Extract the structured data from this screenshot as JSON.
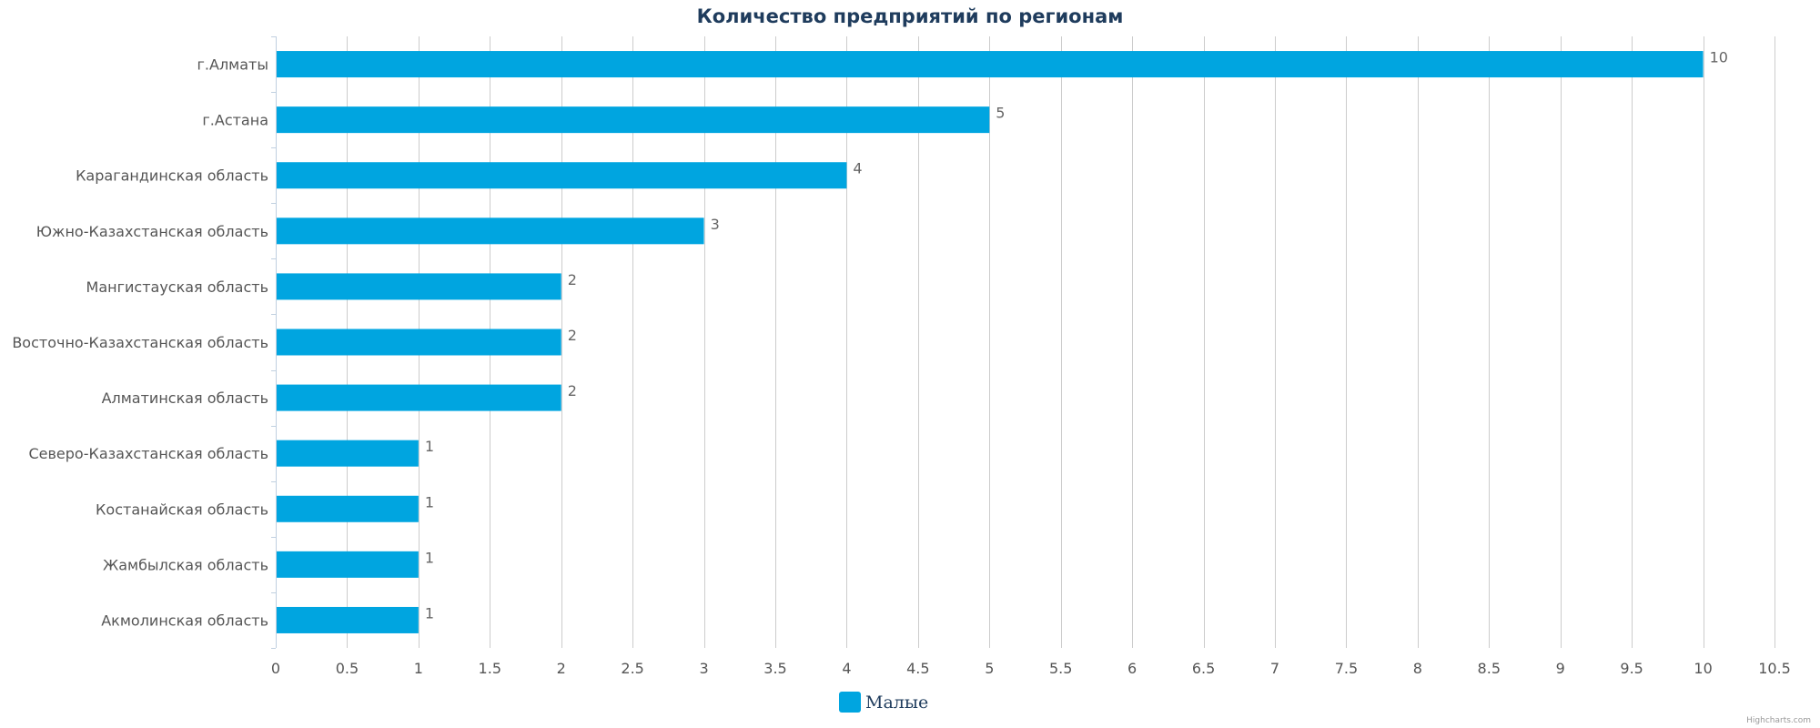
{
  "chart_data": {
    "type": "bar",
    "orientation": "horizontal",
    "title": "Количество предприятий по регионам",
    "categories": [
      "г.Алматы",
      "г.Астана",
      "Карагандинская область",
      "Южно-Казахстанская область",
      "Мангистауская область",
      "Восточно-Казахстанская область",
      "Алматинская область",
      "Северо-Казахстанская область",
      "Костанайская область",
      "Жамбылская область",
      "Акмолинская область"
    ],
    "series": [
      {
        "name": "Малые",
        "color": "#00a5e0",
        "values": [
          10,
          5,
          4,
          3,
          2,
          2,
          2,
          1,
          1,
          1,
          1
        ]
      }
    ],
    "xlim": [
      0,
      10.5
    ],
    "x_ticks": [
      "0",
      "0.5",
      "1",
      "1.5",
      "2",
      "2.5",
      "3",
      "3.5",
      "4",
      "4.5",
      "5",
      "5.5",
      "6",
      "6.5",
      "7",
      "7.5",
      "8",
      "8.5",
      "9",
      "9.5",
      "10",
      "10.5"
    ],
    "grid": true,
    "legend_position": "bottom-center",
    "credits": "Highcharts.com"
  }
}
